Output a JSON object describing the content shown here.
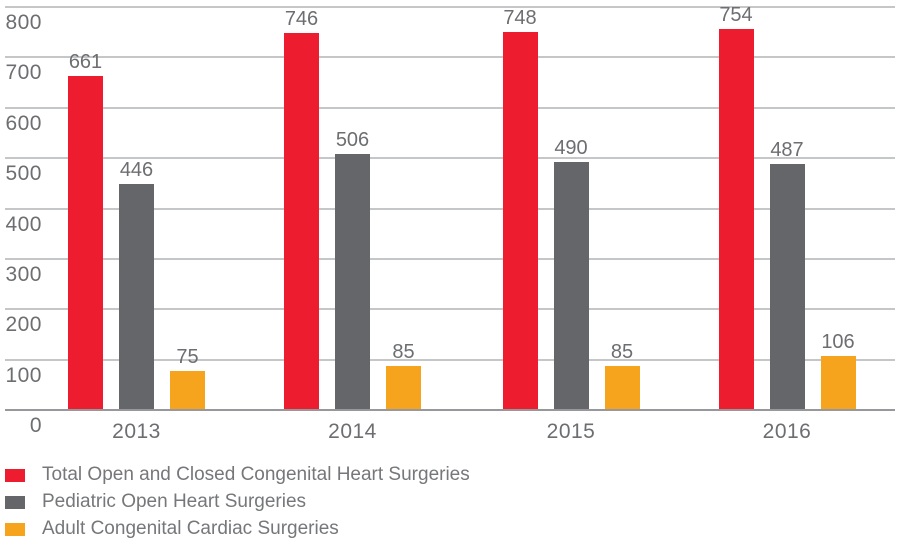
{
  "chart_data": {
    "type": "bar",
    "categories": [
      "2013",
      "2014",
      "2015",
      "2016"
    ],
    "series": [
      {
        "name": "Total Open and Closed Congenital Heart Surgeries",
        "color": "#ed1c2e",
        "values": [
          661,
          746,
          748,
          754
        ]
      },
      {
        "name": "Pediatric Open Heart Surgeries",
        "color": "#656669",
        "values": [
          446,
          506,
          490,
          487
        ]
      },
      {
        "name": "Adult Congenital Cardiac Surgeries",
        "color": "#f6a41e",
        "values": [
          75,
          85,
          85,
          106
        ]
      }
    ],
    "title": "",
    "xlabel": "",
    "ylabel": "",
    "ylim": [
      0,
      800
    ],
    "y_tick_step": 100,
    "y_tick_labels": [
      "0",
      "100",
      "200",
      "300",
      "400",
      "500",
      "600",
      "700",
      "800"
    ],
    "grid": true,
    "legend_position": "bottom-left"
  },
  "colors": {
    "background": "#ffffff",
    "gridline": "#c5c6c8",
    "axis_line": "#97989b",
    "tick_text": "#6d6e71",
    "value_text": "#6d6e71",
    "legend_text": "#76777a"
  }
}
